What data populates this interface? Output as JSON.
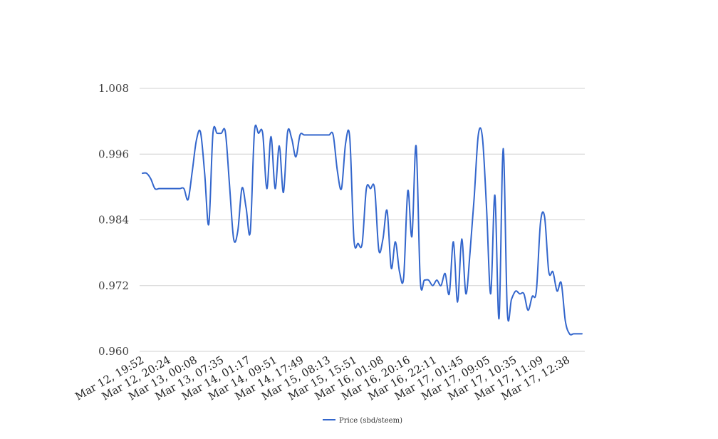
{
  "chart_data": {
    "type": "line",
    "title": "",
    "xlabel": "",
    "ylabel": "",
    "ylim": [
      0.96,
      1.008
    ],
    "y_ticks": [
      "1.008",
      "0.996",
      "0.984",
      "0.972",
      "0.960"
    ],
    "x_tick_labels": [
      "Mar 12, 19:52",
      "Mar 12, 20:24",
      "Mar 13, 00:08",
      "Mar 13, 07:35",
      "Mar 14, 01:17",
      "Mar 14, 09:51",
      "Mar 14, 17:49",
      "Mar 15, 08:13",
      "Mar 15, 15:51",
      "Mar 16, 01:08",
      "Mar 16, 20:16",
      "Mar 16, 22:11",
      "Mar 17, 01:45",
      "Mar 17, 09:05",
      "Mar 17, 10:35",
      "Mar 17, 11:09",
      "Mar 17, 12:38"
    ],
    "grid": true,
    "legend_position": "bottom",
    "color": "#3366cc",
    "series": [
      {
        "name": "Price (sbd/steem)",
        "values": [
          0.9925,
          0.9925,
          0.9915,
          0.9897,
          0.9897,
          0.9897,
          0.9897,
          0.9897,
          0.9897,
          0.9897,
          0.9897,
          0.9877,
          0.9928,
          0.9985,
          1.0,
          0.9925,
          0.9832,
          0.9998,
          0.9998,
          0.9998,
          1.0,
          0.9903,
          0.9805,
          0.982,
          0.9898,
          0.9862,
          0.9818,
          1.0,
          0.9998,
          0.9998,
          0.9897,
          0.9992,
          0.9897,
          0.9975,
          0.989,
          1.0,
          0.9988,
          0.9955,
          0.9995,
          0.9995,
          0.9995,
          0.9995,
          0.9995,
          0.9995,
          0.9995,
          0.9995,
          0.9995,
          0.993,
          0.9897,
          0.998,
          0.999,
          0.9805,
          0.9797,
          0.9797,
          0.9897,
          0.9897,
          0.9897,
          0.9785,
          0.9805,
          0.9857,
          0.9752,
          0.98,
          0.9745,
          0.9735,
          0.9893,
          0.981,
          0.9975,
          0.973,
          0.973,
          0.973,
          0.972,
          0.973,
          0.972,
          0.9742,
          0.9705,
          0.98,
          0.969,
          0.9805,
          0.9705,
          0.978,
          0.988,
          0.9995,
          0.999,
          0.986,
          0.9705,
          0.9885,
          0.966,
          0.997,
          0.9672,
          0.9695,
          0.971,
          0.9705,
          0.9705,
          0.9675,
          0.97,
          0.971,
          0.9835,
          0.9845,
          0.9745,
          0.9745,
          0.971,
          0.9725,
          0.9655,
          0.9632,
          0.9632,
          0.9632,
          0.9632
        ]
      }
    ]
  }
}
